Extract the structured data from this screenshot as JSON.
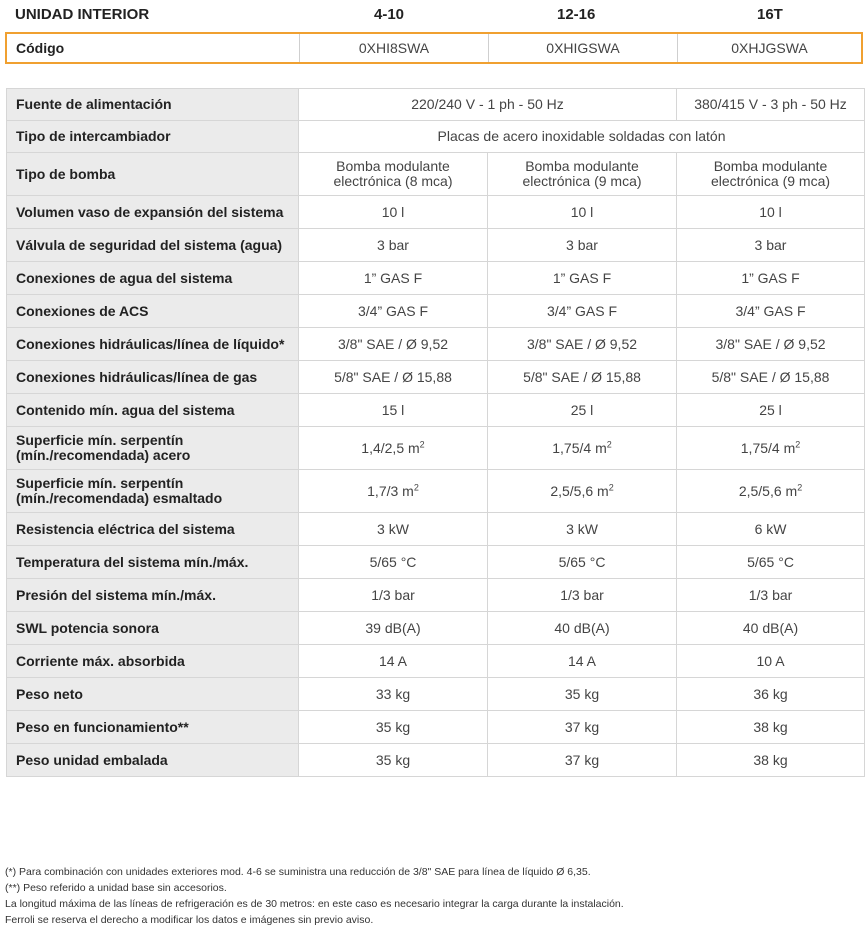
{
  "header": {
    "label": "UNIDAD INTERIOR",
    "models": [
      "4-10",
      "12-16",
      "16T"
    ]
  },
  "codigo": {
    "label": "Código",
    "values": [
      "0XHI8SWA",
      "0XHIGSWA",
      "0XHJGSWA"
    ]
  },
  "rows": [
    {
      "label": "Fuente de alimentación",
      "values": [
        "220/240 V - 1 ph - 50 Hz",
        "380/415 V - 3 ph - 50 Hz"
      ]
    },
    {
      "label": "Tipo de intercambiador",
      "values": [
        "Placas de acero inoxidable soldadas con latón"
      ]
    },
    {
      "label": "Tipo de bomba",
      "values": [
        [
          "Bomba modulante",
          "electrónica (8 mca)"
        ],
        [
          "Bomba modulante",
          "electrónica (9 mca)"
        ],
        [
          "Bomba modulante",
          "electrónica (9 mca)"
        ]
      ]
    },
    {
      "label": "Volumen vaso de expansión del sistema",
      "values": [
        "10 l",
        "10 l",
        "10 l"
      ]
    },
    {
      "label": "Válvula de seguridad del sistema (agua)",
      "values": [
        "3 bar",
        "3 bar",
        "3 bar"
      ]
    },
    {
      "label": "Conexiones de agua del sistema",
      "values": [
        "1” GAS F",
        "1” GAS F",
        "1” GAS F"
      ]
    },
    {
      "label": "Conexiones de ACS",
      "values": [
        "3/4” GAS F",
        "3/4” GAS F",
        "3/4” GAS F"
      ]
    },
    {
      "label": "Conexiones hidráulicas/línea de líquido*",
      "values": [
        "3/8\" SAE / Ø 9,52",
        "3/8\" SAE / Ø 9,52",
        "3/8\" SAE / Ø 9,52"
      ]
    },
    {
      "label": "Conexiones hidráulicas/línea de gas",
      "values": [
        "5/8\" SAE / Ø 15,88",
        "5/8\" SAE / Ø 15,88",
        "5/8\" SAE / Ø 15,88"
      ]
    },
    {
      "label": "Contenido mín. agua del sistema",
      "values": [
        "15 l",
        "25 l",
        "25 l"
      ]
    },
    {
      "label": [
        "Superficie mín. serpentín",
        "(mín./recomendada) acero"
      ],
      "values": [
        "1,4/2,5 m",
        "1,75/4 m",
        "1,75/4 m"
      ],
      "sup": "2"
    },
    {
      "label": [
        "Superficie mín. serpentín",
        "(mín./recomendada) esmaltado"
      ],
      "values": [
        "1,7/3 m",
        "2,5/5,6 m",
        "2,5/5,6 m"
      ],
      "sup": "2"
    },
    {
      "label": "Resistencia eléctrica del sistema",
      "values": [
        "3 kW",
        "3 kW",
        "6 kW"
      ]
    },
    {
      "label": "Temperatura del sistema mín./máx.",
      "values": [
        "5/65 °C",
        "5/65 °C",
        "5/65 °C"
      ]
    },
    {
      "label": "Presión del sistema mín./máx.",
      "values": [
        "1/3 bar",
        "1/3 bar",
        "1/3 bar"
      ]
    },
    {
      "label": "SWL potencia sonora",
      "values": [
        "39 dB(A)",
        "40 dB(A)",
        "40 dB(A)"
      ]
    },
    {
      "label": "Corriente máx. absorbida",
      "values": [
        "14 A",
        "14 A",
        "10 A"
      ]
    },
    {
      "label": "Peso neto",
      "values": [
        "33 kg",
        "35 kg",
        "36 kg"
      ]
    },
    {
      "label": "Peso en funcionamiento**",
      "values": [
        "35 kg",
        "37 kg",
        "38 kg"
      ]
    },
    {
      "label": "Peso unidad embalada",
      "values": [
        "35 kg",
        "37 kg",
        "38 kg"
      ]
    }
  ],
  "notes": [
    "(*) Para combinación con unidades exteriores mod. 4-6 se suministra una reducción de 3/8\" SAE para línea de líquido Ø 6,35.",
    "(**) Peso referido a unidad base sin accesorios.",
    "La longitud máxima de las líneas de refrigeración es de 30 metros: en este caso es necesario integrar la carga durante la instalación.",
    "Ferroli se reserva el derecho a modificar los datos e imágenes sin previo aviso."
  ]
}
